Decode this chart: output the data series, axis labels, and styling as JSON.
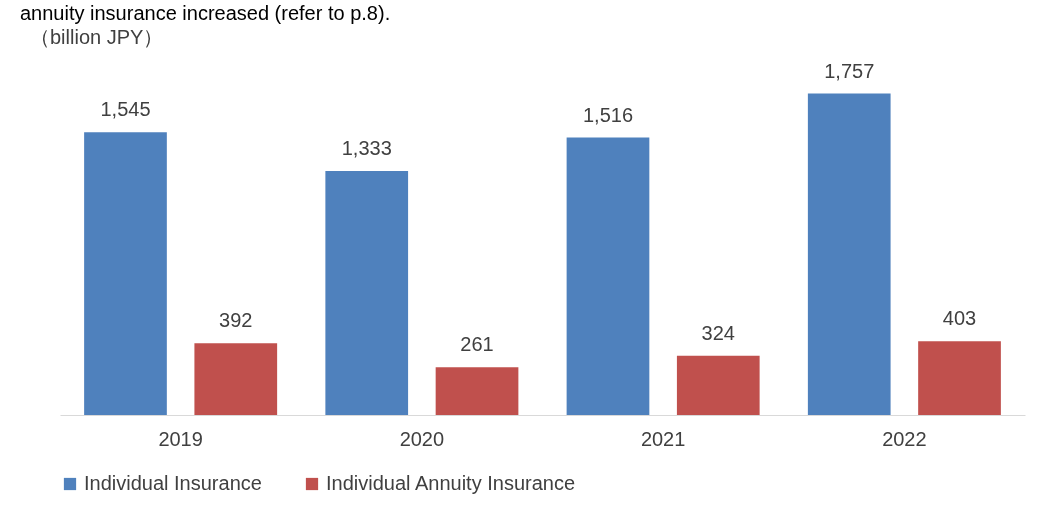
{
  "chart_data": {
    "type": "bar",
    "annotations": [
      "annuity insurance increased (refer to p.8)."
    ],
    "ylabel": "（billion JPY）",
    "categories": [
      "2019",
      "2020",
      "2021",
      "2022"
    ],
    "series": [
      {
        "name": "Individual Insurance",
        "color": "#4f81bd",
        "values": [
          1545,
          1333,
          1516,
          1757
        ],
        "value_labels": [
          "1,545",
          "1,333",
          "1,516",
          "1,757"
        ]
      },
      {
        "name": "Individual Annuity Insurance",
        "color": "#c0504d",
        "values": [
          392,
          261,
          324,
          403
        ],
        "value_labels": [
          "392",
          "261",
          "324",
          "403"
        ]
      }
    ],
    "legend": "bottom"
  }
}
